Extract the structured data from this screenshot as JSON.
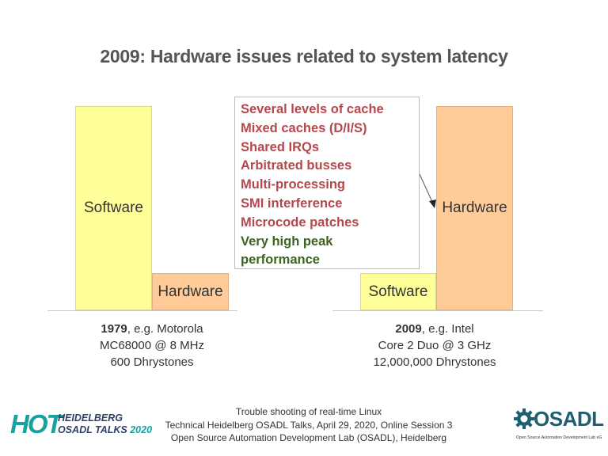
{
  "slide": {
    "title": "2009: Hardware issues related to system latency",
    "left_chart": {
      "software_label": "Software",
      "hardware_label": "Hardware",
      "year": "1979",
      "caption_line1_rest": ", e.g. Motorola",
      "caption_line2": "MC68000 @ 8 MHz",
      "caption_line3": "600 Dhrystones"
    },
    "right_chart": {
      "software_label": "Software",
      "hardware_label": "Hardware",
      "year": "2009",
      "caption_line1_rest": ", e.g. Intel",
      "caption_line2": "Core 2 Duo @ 3 GHz",
      "caption_line3": "12,000,000 Dhrystones"
    },
    "issues": [
      "Several levels of cache",
      "Mixed caches  (D/I/S)",
      "Shared IRQs",
      "Arbitrated busses",
      "Multi-processing",
      "SMI interference",
      "Microcode patches"
    ],
    "peak_label": "Very high peak performance",
    "colors": {
      "issue_text": "#b5484c",
      "peak_text": "#3b6420",
      "software_bar": "#ffff99",
      "hardware_bar": "#ffcc99"
    }
  },
  "footer": {
    "line1": "Trouble shooting of real-time Linux",
    "line2": "Technical Heidelberg OSADL Talks, April 29, 2020, Online Session 3",
    "line3": "Open Source Automation Development Lab (OSADL), Heidelberg"
  },
  "logos": {
    "hot_big": "HOT",
    "hot_line1": "HEIDELBERG",
    "hot_line2": "OSADL TALKS",
    "hot_year": "2020",
    "osadl_name": "OSADL",
    "osadl_sub": "Open Source Automation Development Lab eG",
    "osadl_icon": "gear-icon"
  }
}
